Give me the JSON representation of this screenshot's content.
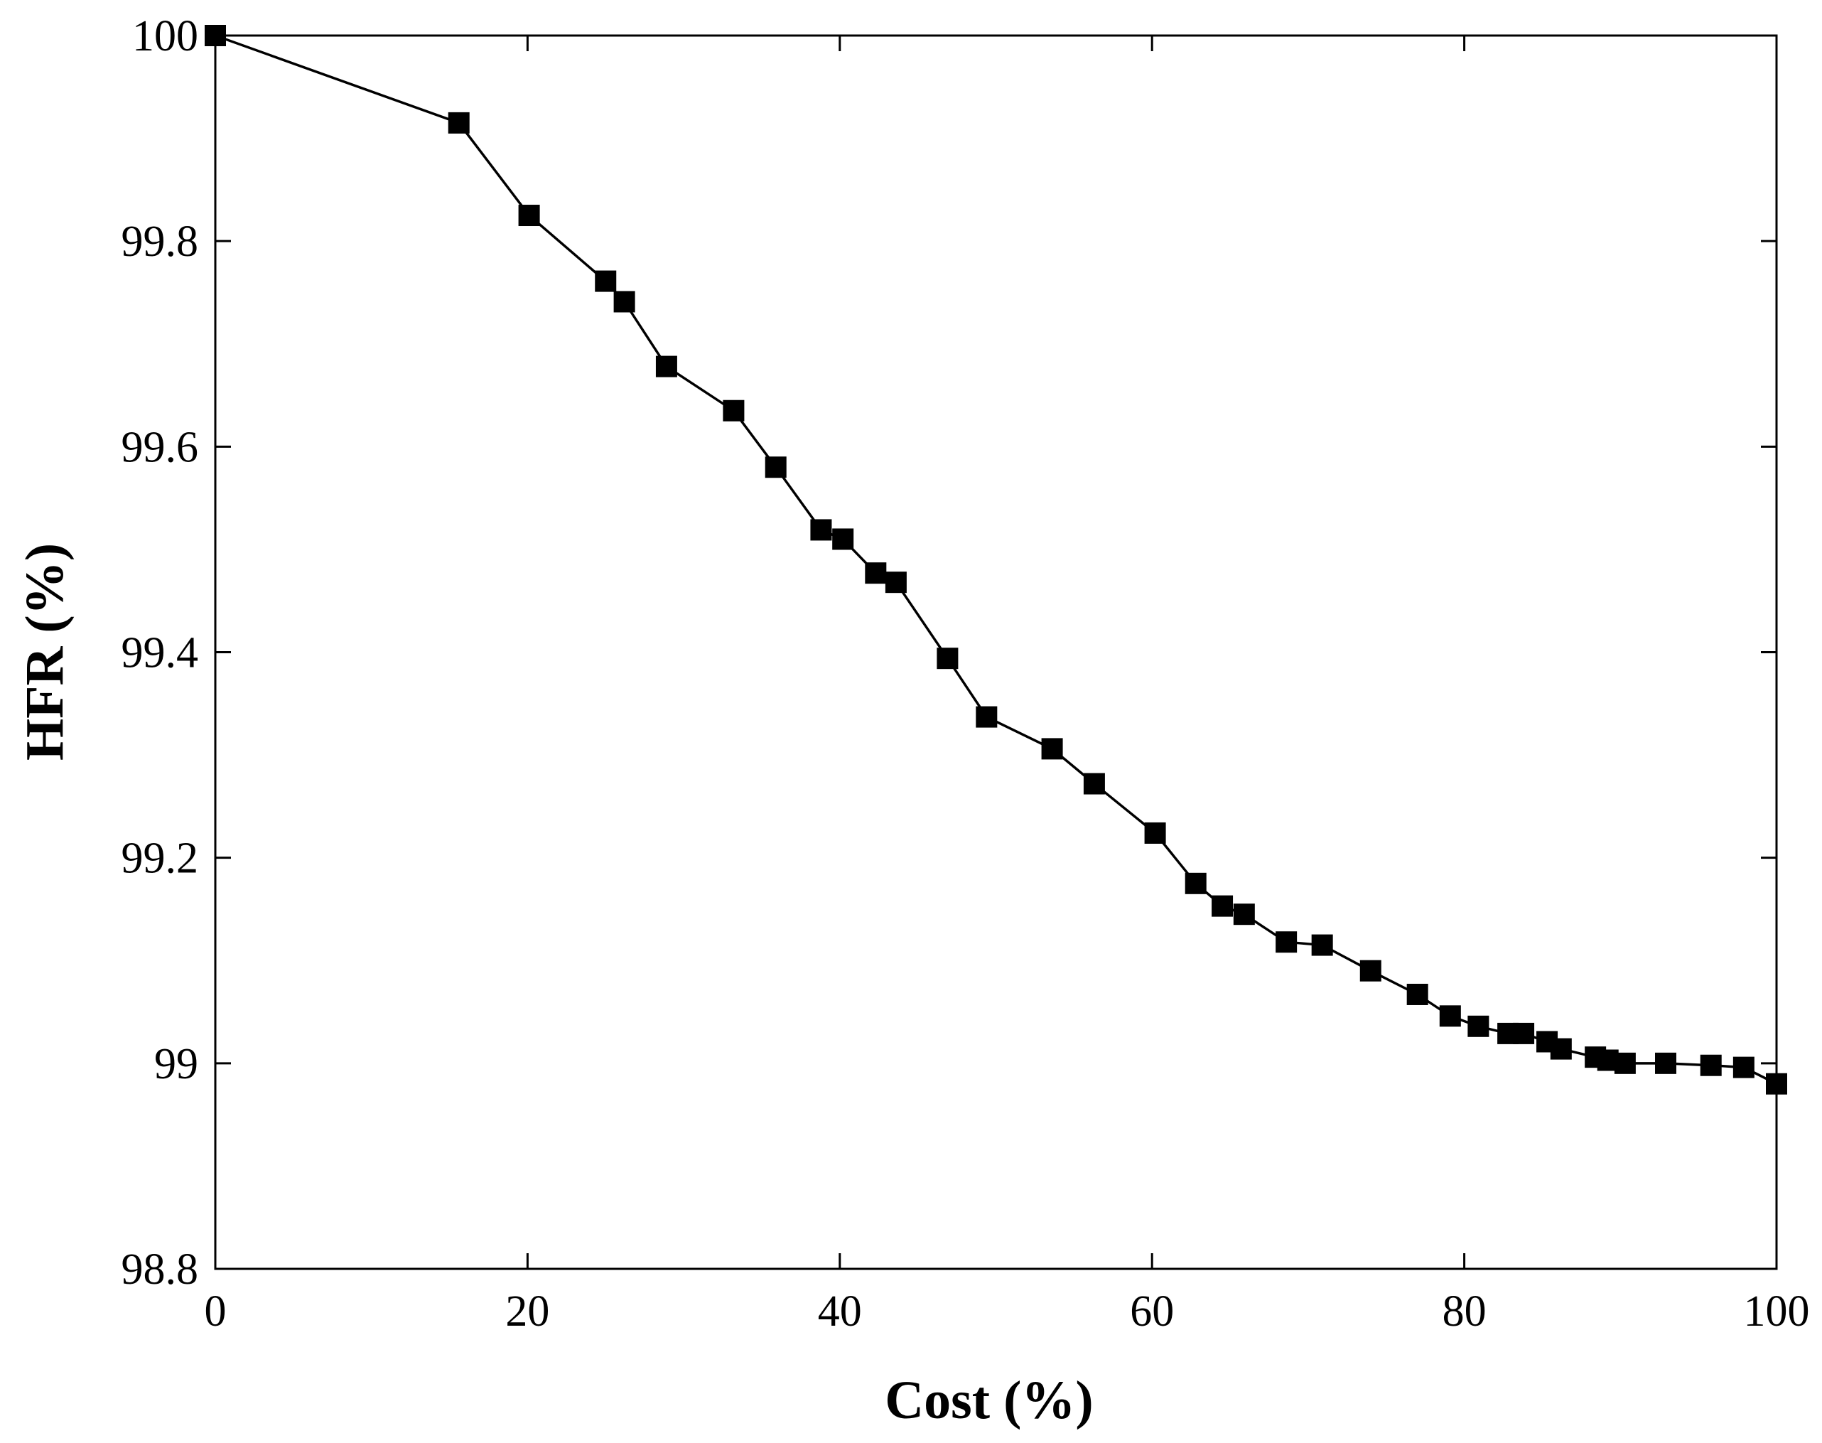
{
  "chart_data": {
    "type": "line",
    "title": "",
    "xlabel": "Cost (%)",
    "ylabel": "HFR (%)",
    "xlim": [
      0,
      100
    ],
    "ylim": [
      98.8,
      100
    ],
    "x_ticks": [
      0,
      20,
      40,
      60,
      80,
      100
    ],
    "x_tick_labels": [
      "0",
      "20",
      "40",
      "60",
      "80",
      "100"
    ],
    "y_ticks": [
      98.8,
      99.0,
      99.2,
      99.4,
      99.6,
      99.8,
      100
    ],
    "y_tick_labels": [
      "98.8",
      "99",
      "99.2",
      "99.4",
      "99.6",
      "99.8",
      "100"
    ],
    "grid": false,
    "legend": "none",
    "marker": "filled-square",
    "color": "#000000",
    "series": [
      {
        "x": [
          0,
          15.6,
          20.1,
          25.0,
          26.2,
          28.9,
          33.2,
          35.9,
          38.8,
          40.2,
          42.3,
          43.6,
          46.9,
          49.4,
          53.6,
          56.3,
          60.2,
          62.8,
          64.5,
          65.9,
          68.6,
          70.9,
          74.0,
          77.0,
          79.1,
          80.9,
          82.8,
          83.8,
          85.3,
          86.2,
          88.4,
          89.2,
          90.3,
          92.9,
          95.8,
          97.9,
          100
        ],
        "y": [
          100,
          99.915,
          99.825,
          99.761,
          99.741,
          99.678,
          99.635,
          99.58,
          99.519,
          99.51,
          99.477,
          99.468,
          99.394,
          99.337,
          99.306,
          99.272,
          99.224,
          99.175,
          99.153,
          99.145,
          99.118,
          99.115,
          99.09,
          99.067,
          99.046,
          99.036,
          99.029,
          99.029,
          99.021,
          99.014,
          99.006,
          99.003,
          99.0,
          99.0,
          98.998,
          98.996,
          98.98
        ]
      }
    ]
  }
}
